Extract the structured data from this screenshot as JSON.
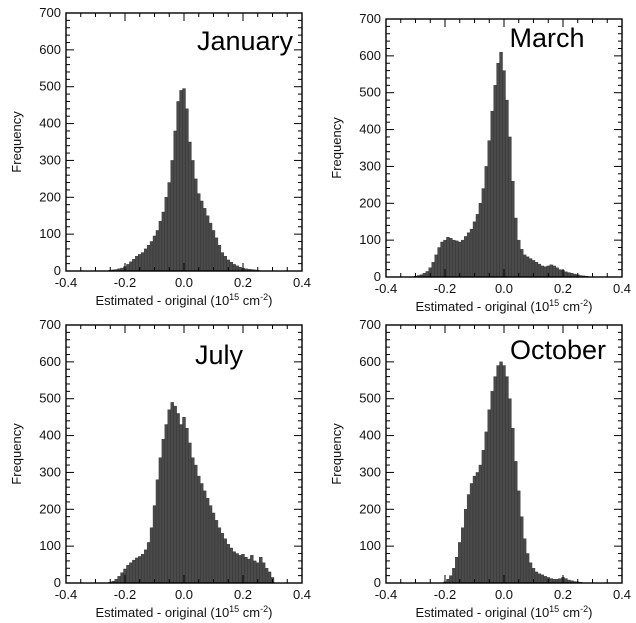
{
  "chart_data": [
    {
      "type": "bar",
      "title": "January",
      "xlabel": "Estimated - original (10",
      "xlabel_exp": "15",
      "xlabel_unit": " cm",
      "xlabel_unit_exp": "-2",
      "xlabel_close": ")",
      "ylabel": "Frequency",
      "xlim": [
        -0.4,
        0.4
      ],
      "ylim": [
        0,
        700
      ],
      "xticks": [
        "-0.4",
        "-0.2",
        "0.0",
        "0.2",
        "0.4"
      ],
      "yticks": [
        "0",
        "100",
        "200",
        "300",
        "400",
        "500",
        "600",
        "700"
      ],
      "bin_width": 0.01,
      "x": [
        -0.25,
        -0.24,
        -0.23,
        -0.22,
        -0.21,
        -0.2,
        -0.19,
        -0.18,
        -0.17,
        -0.16,
        -0.15,
        -0.14,
        -0.13,
        -0.12,
        -0.11,
        -0.1,
        -0.09,
        -0.08,
        -0.07,
        -0.06,
        -0.05,
        -0.04,
        -0.03,
        -0.02,
        -0.01,
        0.0,
        0.01,
        0.02,
        0.03,
        0.04,
        0.05,
        0.06,
        0.07,
        0.08,
        0.09,
        0.1,
        0.11,
        0.12,
        0.13,
        0.14,
        0.15,
        0.16,
        0.17,
        0.18,
        0.19,
        0.2,
        0.21,
        0.22,
        0.23,
        0.24,
        0.25
      ],
      "values": [
        2,
        3,
        4,
        6,
        8,
        12,
        18,
        25,
        32,
        40,
        45,
        50,
        60,
        70,
        80,
        95,
        110,
        135,
        160,
        200,
        240,
        300,
        380,
        460,
        490,
        495,
        440,
        350,
        300,
        250,
        210,
        190,
        170,
        150,
        130,
        110,
        90,
        70,
        50,
        40,
        30,
        24,
        18,
        14,
        10,
        8,
        6,
        5,
        4,
        3,
        2
      ]
    },
    {
      "type": "bar",
      "title": "March",
      "xlabel": "Estimated - original (10",
      "xlabel_exp": "15",
      "xlabel_unit": " cm",
      "xlabel_unit_exp": "-2",
      "xlabel_close": ")",
      "ylabel": "Frequency",
      "xlim": [
        -0.4,
        0.4
      ],
      "ylim": [
        0,
        700
      ],
      "xticks": [
        "-0.4",
        "-0.2",
        "0.0",
        "0.2",
        "0.4"
      ],
      "yticks": [
        "0",
        "100",
        "200",
        "300",
        "400",
        "500",
        "600",
        "700"
      ],
      "bin_width": 0.01,
      "x": [
        -0.3,
        -0.29,
        -0.28,
        -0.27,
        -0.26,
        -0.25,
        -0.24,
        -0.23,
        -0.22,
        -0.21,
        -0.2,
        -0.19,
        -0.18,
        -0.17,
        -0.16,
        -0.15,
        -0.14,
        -0.13,
        -0.12,
        -0.11,
        -0.1,
        -0.09,
        -0.08,
        -0.07,
        -0.06,
        -0.05,
        -0.04,
        -0.03,
        -0.02,
        -0.01,
        0.0,
        0.01,
        0.02,
        0.03,
        0.04,
        0.05,
        0.06,
        0.07,
        0.08,
        0.09,
        0.1,
        0.11,
        0.12,
        0.13,
        0.14,
        0.15,
        0.16,
        0.17,
        0.18,
        0.19,
        0.2,
        0.21,
        0.22,
        0.23,
        0.24,
        0.25,
        0.26,
        0.27,
        0.28
      ],
      "values": [
        2,
        4,
        6,
        10,
        15,
        25,
        40,
        60,
        80,
        95,
        100,
        108,
        105,
        100,
        98,
        95,
        100,
        110,
        120,
        130,
        150,
        170,
        200,
        240,
        300,
        370,
        450,
        520,
        580,
        610,
        560,
        480,
        380,
        260,
        160,
        100,
        75,
        60,
        55,
        50,
        45,
        40,
        35,
        30,
        28,
        30,
        33,
        30,
        25,
        20,
        18,
        14,
        12,
        10,
        8,
        6,
        4,
        3,
        2
      ]
    },
    {
      "type": "bar",
      "title": "July",
      "xlabel": "Estimated - original (10",
      "xlabel_exp": "15",
      "xlabel_unit": " cm",
      "xlabel_unit_exp": "-2",
      "xlabel_close": ")",
      "ylabel": "Frequency",
      "xlim": [
        -0.4,
        0.4
      ],
      "ylim": [
        0,
        700
      ],
      "xticks": [
        "-0.4",
        "-0.2",
        "0.0",
        "0.2",
        "0.4"
      ],
      "yticks": [
        "0",
        "100",
        "200",
        "300",
        "400",
        "500",
        "600",
        "700"
      ],
      "bin_width": 0.01,
      "x": [
        -0.25,
        -0.24,
        -0.23,
        -0.22,
        -0.21,
        -0.2,
        -0.19,
        -0.18,
        -0.17,
        -0.16,
        -0.15,
        -0.14,
        -0.13,
        -0.12,
        -0.11,
        -0.1,
        -0.09,
        -0.08,
        -0.07,
        -0.06,
        -0.05,
        -0.04,
        -0.03,
        -0.02,
        -0.01,
        0.0,
        0.01,
        0.02,
        0.03,
        0.04,
        0.05,
        0.06,
        0.07,
        0.08,
        0.09,
        0.1,
        0.11,
        0.12,
        0.13,
        0.14,
        0.15,
        0.16,
        0.17,
        0.18,
        0.19,
        0.2,
        0.21,
        0.22,
        0.23,
        0.24,
        0.25,
        0.26,
        0.27,
        0.28,
        0.29,
        0.3
      ],
      "values": [
        2,
        5,
        10,
        18,
        28,
        38,
        48,
        55,
        62,
        68,
        72,
        78,
        90,
        110,
        150,
        210,
        280,
        340,
        390,
        430,
        470,
        490,
        480,
        460,
        430,
        450,
        420,
        380,
        340,
        320,
        290,
        270,
        250,
        230,
        210,
        190,
        170,
        150,
        135,
        120,
        105,
        95,
        85,
        80,
        75,
        78,
        70,
        65,
        75,
        60,
        55,
        70,
        55,
        40,
        30,
        15
      ]
    },
    {
      "type": "bar",
      "title": "October",
      "xlabel": "Estimated - original (10",
      "xlabel_exp": "15",
      "xlabel_unit": " cm",
      "xlabel_unit_exp": "-2",
      "xlabel_close": ")",
      "ylabel": "Frequency",
      "xlim": [
        -0.4,
        0.4
      ],
      "ylim": [
        0,
        700
      ],
      "xticks": [
        "-0.4",
        "-0.2",
        "0.0",
        "0.2",
        "0.4"
      ],
      "yticks": [
        "0",
        "100",
        "200",
        "300",
        "400",
        "500",
        "600",
        "700"
      ],
      "bin_width": 0.01,
      "x": [
        -0.2,
        -0.19,
        -0.18,
        -0.17,
        -0.16,
        -0.15,
        -0.14,
        -0.13,
        -0.12,
        -0.11,
        -0.1,
        -0.09,
        -0.08,
        -0.07,
        -0.06,
        -0.05,
        -0.04,
        -0.03,
        -0.02,
        -0.01,
        0.0,
        0.01,
        0.02,
        0.03,
        0.04,
        0.05,
        0.06,
        0.07,
        0.08,
        0.09,
        0.1,
        0.11,
        0.12,
        0.13,
        0.14,
        0.15,
        0.16,
        0.17,
        0.18,
        0.19,
        0.2,
        0.21,
        0.22,
        0.23,
        0.24,
        0.25,
        0.26
      ],
      "values": [
        3,
        10,
        20,
        40,
        70,
        110,
        150,
        200,
        240,
        270,
        290,
        300,
        320,
        360,
        410,
        470,
        520,
        560,
        590,
        600,
        590,
        560,
        500,
        420,
        330,
        250,
        180,
        120,
        80,
        55,
        40,
        30,
        25,
        22,
        18,
        15,
        12,
        10,
        10,
        12,
        15,
        12,
        8,
        6,
        4,
        3,
        2
      ]
    }
  ]
}
